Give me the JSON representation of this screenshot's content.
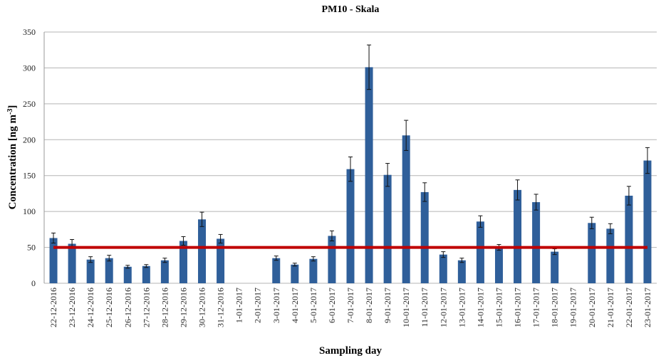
{
  "chart_data": {
    "type": "bar",
    "title": "PM10 - Skala",
    "xlabel": "Sampling day",
    "ylabel": "Concentration [ng m-3]",
    "ylabel_main": "Concentration [ng m",
    "ylabel_sup": "-3",
    "ylabel_end": "]",
    "ylim": [
      0,
      350
    ],
    "yticks": [
      0,
      50,
      100,
      150,
      200,
      250,
      300,
      350
    ],
    "grid": true,
    "bar_color": "#2f5f9a",
    "limit_line": {
      "value": 50,
      "color": "#c00000"
    },
    "categories": [
      "22-12-2016",
      "23-12-2016",
      "24-12-2016",
      "25-12-2016",
      "26-12-2016",
      "27-12-2016",
      "28-12-2016",
      "29-12-2016",
      "30-12-2016",
      "31-12-2016",
      "1-01-2017",
      "2-01-2017",
      "3-01-2017",
      "4-01-2017",
      "5-01-2017",
      "6-01-2017",
      "7-01-2017",
      "8-01-2017",
      "9-01-2017",
      "10-01-2017",
      "11-01-2017",
      "12-01-2017",
      "13-01-2017",
      "14-01-2017",
      "15-01-2017",
      "16-01-2017",
      "17-01-2017",
      "18-01-2017",
      "19-01-2017",
      "20-01-2017",
      "21-01-2017",
      "22-01-2017",
      "23-01-2017"
    ],
    "values": [
      63,
      55,
      33,
      35,
      23,
      24,
      32,
      59,
      89,
      62,
      null,
      null,
      35,
      26,
      34,
      66,
      159,
      301,
      151,
      206,
      127,
      40,
      32,
      86,
      50,
      130,
      113,
      44,
      null,
      84,
      76,
      122,
      171
    ],
    "errors": [
      7,
      6,
      4,
      4,
      2,
      2,
      3,
      6,
      10,
      6,
      null,
      null,
      3,
      2,
      3,
      7,
      17,
      31,
      16,
      21,
      13,
      4,
      3,
      8,
      4,
      14,
      11,
      4,
      null,
      8,
      7,
      13,
      18
    ]
  }
}
